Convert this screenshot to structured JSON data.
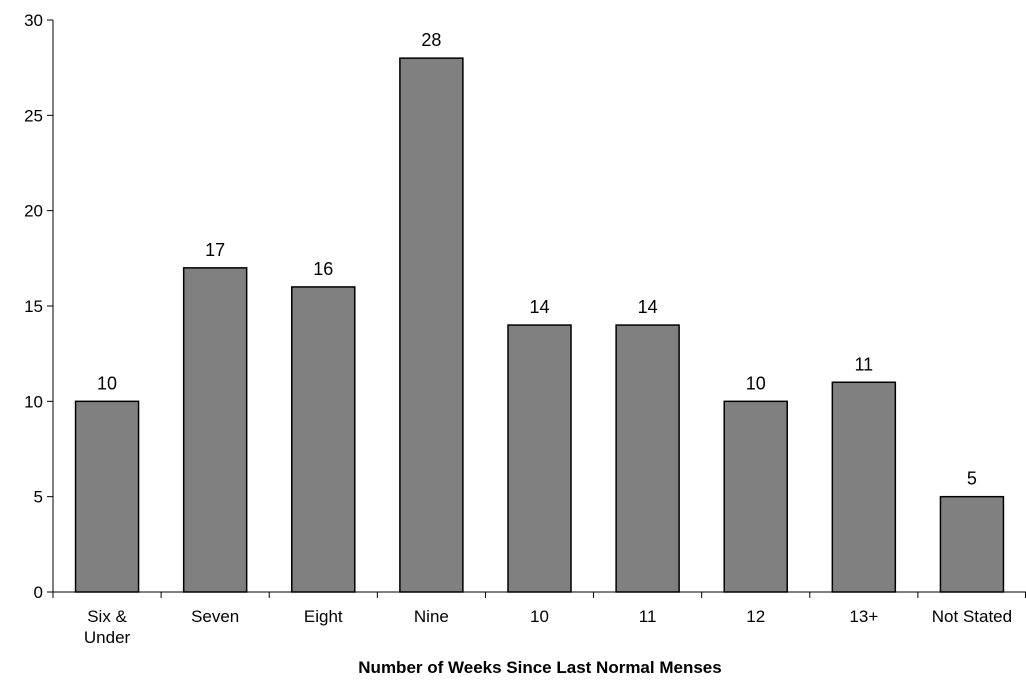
{
  "chart_data": {
    "type": "bar",
    "title": "",
    "xlabel": "Number of Weeks Since Last Normal Menses",
    "ylabel": "",
    "ylim": [
      0,
      30
    ],
    "yticks": [
      0,
      5,
      10,
      15,
      20,
      25,
      30
    ],
    "categories": [
      [
        "Six &",
        "Under"
      ],
      [
        "Seven"
      ],
      [
        "Eight"
      ],
      [
        "Nine"
      ],
      [
        "10"
      ],
      [
        "11"
      ],
      [
        "12"
      ],
      [
        "13+"
      ],
      [
        "Not Stated"
      ]
    ],
    "values": [
      10,
      17,
      16,
      28,
      14,
      14,
      10,
      11,
      5
    ],
    "data_labels": [
      "10",
      "17",
      "16",
      "28",
      "14",
      "14",
      "10",
      "11",
      "5"
    ],
    "grid": false,
    "bar_color": "#808080",
    "bar_edge_color": "#000000"
  }
}
